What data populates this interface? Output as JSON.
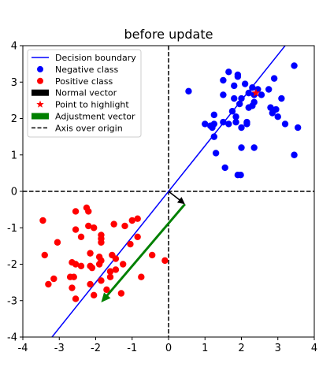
{
  "chart_data": {
    "type": "scatter",
    "title": "before update",
    "xlabel": "",
    "ylabel": "",
    "xlim": [
      -4,
      4
    ],
    "ylim": [
      -4,
      4
    ],
    "xticks": [
      -4,
      -3,
      -2,
      -1,
      0,
      1,
      2,
      3,
      4
    ],
    "yticks": [
      -4,
      -3,
      -2,
      -1,
      0,
      1,
      2,
      3,
      4
    ],
    "grid": false,
    "legend_position": "top-left",
    "legend": [
      {
        "label": "Decision boundary",
        "kind": "line",
        "color": "#0000ff"
      },
      {
        "label": "Negative class",
        "kind": "dot",
        "color": "#0000ff"
      },
      {
        "label": "Positive class",
        "kind": "dot",
        "color": "#ff0000"
      },
      {
        "label": "Normal vector",
        "kind": "patch",
        "color": "#000000"
      },
      {
        "label": "Point to highlight",
        "kind": "star",
        "color": "#ff0000"
      },
      {
        "label": "Adjustment vector",
        "kind": "patch",
        "color": "#008000"
      },
      {
        "label": "Axis over origin",
        "kind": "dash",
        "color": "#000000"
      }
    ],
    "decision_boundary": {
      "x": [
        -3.2,
        3.2
      ],
      "y": [
        -4.0,
        4.0
      ],
      "color": "#0000ff"
    },
    "normal_vector": {
      "from": [
        0,
        0
      ],
      "to": [
        0.45,
        -0.35
      ],
      "color": "#000000"
    },
    "adjustment_vector": {
      "from": [
        0.45,
        -0.35
      ],
      "to": [
        -1.85,
        -3.05
      ],
      "color": "#008000"
    },
    "highlight_point": {
      "x": 2.4,
      "y": 2.7,
      "color": "#ff0000"
    },
    "series": [
      {
        "name": "Negative class",
        "color": "#0000ff",
        "points": [
          [
            0.55,
            2.75
          ],
          [
            1.65,
            3.28
          ],
          [
            1.5,
            3.05
          ],
          [
            1.9,
            3.2
          ],
          [
            1.9,
            3.15
          ],
          [
            3.45,
            3.45
          ],
          [
            1.8,
            2.9
          ],
          [
            2.1,
            2.95
          ],
          [
            2.3,
            2.85
          ],
          [
            2.45,
            2.8
          ],
          [
            2.75,
            2.8
          ],
          [
            2.9,
            3.1
          ],
          [
            1.5,
            2.65
          ],
          [
            2.2,
            2.7
          ],
          [
            2.35,
            2.65
          ],
          [
            2.55,
            2.65
          ],
          [
            1.8,
            2.55
          ],
          [
            1.95,
            2.4
          ],
          [
            2.0,
            2.55
          ],
          [
            3.1,
            2.55
          ],
          [
            2.2,
            2.3
          ],
          [
            2.35,
            2.45
          ],
          [
            2.3,
            2.35
          ],
          [
            2.8,
            2.3
          ],
          [
            2.85,
            2.15
          ],
          [
            2.95,
            2.25
          ],
          [
            1.75,
            2.2
          ],
          [
            1.25,
            2.1
          ],
          [
            1.85,
            2.05
          ],
          [
            3.0,
            2.05
          ],
          [
            1.0,
            1.85
          ],
          [
            1.15,
            1.8
          ],
          [
            1.25,
            1.85
          ],
          [
            1.2,
            1.75
          ],
          [
            1.5,
            1.9
          ],
          [
            1.65,
            1.85
          ],
          [
            1.85,
            1.9
          ],
          [
            2.0,
            1.75
          ],
          [
            2.15,
            1.85
          ],
          [
            2.15,
            1.9
          ],
          [
            3.2,
            1.85
          ],
          [
            3.55,
            1.75
          ],
          [
            1.25,
            1.5
          ],
          [
            2.0,
            1.2
          ],
          [
            2.35,
            1.2
          ],
          [
            1.3,
            1.05
          ],
          [
            3.45,
            1.0
          ],
          [
            1.55,
            0.65
          ],
          [
            1.9,
            0.45
          ],
          [
            1.98,
            0.45
          ]
        ]
      },
      {
        "name": "Positive class",
        "color": "#ff0000",
        "points": [
          [
            -3.45,
            -0.8
          ],
          [
            -3.4,
            -1.75
          ],
          [
            -3.05,
            -1.4
          ],
          [
            -2.55,
            -0.55
          ],
          [
            -2.25,
            -0.45
          ],
          [
            -2.2,
            -0.55
          ],
          [
            -2.2,
            -0.95
          ],
          [
            -2.05,
            -1.0
          ],
          [
            -2.55,
            -1.05
          ],
          [
            -2.4,
            -1.25
          ],
          [
            -1.85,
            -1.2
          ],
          [
            -1.85,
            -1.3
          ],
          [
            -1.85,
            -1.4
          ],
          [
            -1.5,
            -0.9
          ],
          [
            -1.2,
            -0.95
          ],
          [
            -1.0,
            -0.8
          ],
          [
            -0.85,
            -0.75
          ],
          [
            -0.85,
            -1.25
          ],
          [
            -1.05,
            -1.45
          ],
          [
            -0.45,
            -1.75
          ],
          [
            -0.1,
            -1.9
          ],
          [
            -2.15,
            -1.7
          ],
          [
            -1.9,
            -1.8
          ],
          [
            -1.85,
            -1.9
          ],
          [
            -1.55,
            -1.75
          ],
          [
            -1.45,
            -1.85
          ],
          [
            -2.65,
            -1.95
          ],
          [
            -2.55,
            -2.0
          ],
          [
            -2.4,
            -2.05
          ],
          [
            -2.1,
            -2.1
          ],
          [
            -2.15,
            -2.05
          ],
          [
            -1.9,
            -2.0
          ],
          [
            -1.25,
            -2.0
          ],
          [
            -1.6,
            -2.2
          ],
          [
            -1.45,
            -2.15
          ],
          [
            -3.15,
            -2.4
          ],
          [
            -2.7,
            -2.35
          ],
          [
            -2.6,
            -2.35
          ],
          [
            -2.15,
            -2.55
          ],
          [
            -1.85,
            -2.45
          ],
          [
            -1.6,
            -2.35
          ],
          [
            -0.75,
            -2.35
          ],
          [
            -3.3,
            -2.55
          ],
          [
            -2.65,
            -2.65
          ],
          [
            -1.7,
            -2.7
          ],
          [
            -2.55,
            -2.95
          ],
          [
            -2.05,
            -2.85
          ],
          [
            -1.3,
            -2.8
          ]
        ]
      }
    ]
  }
}
